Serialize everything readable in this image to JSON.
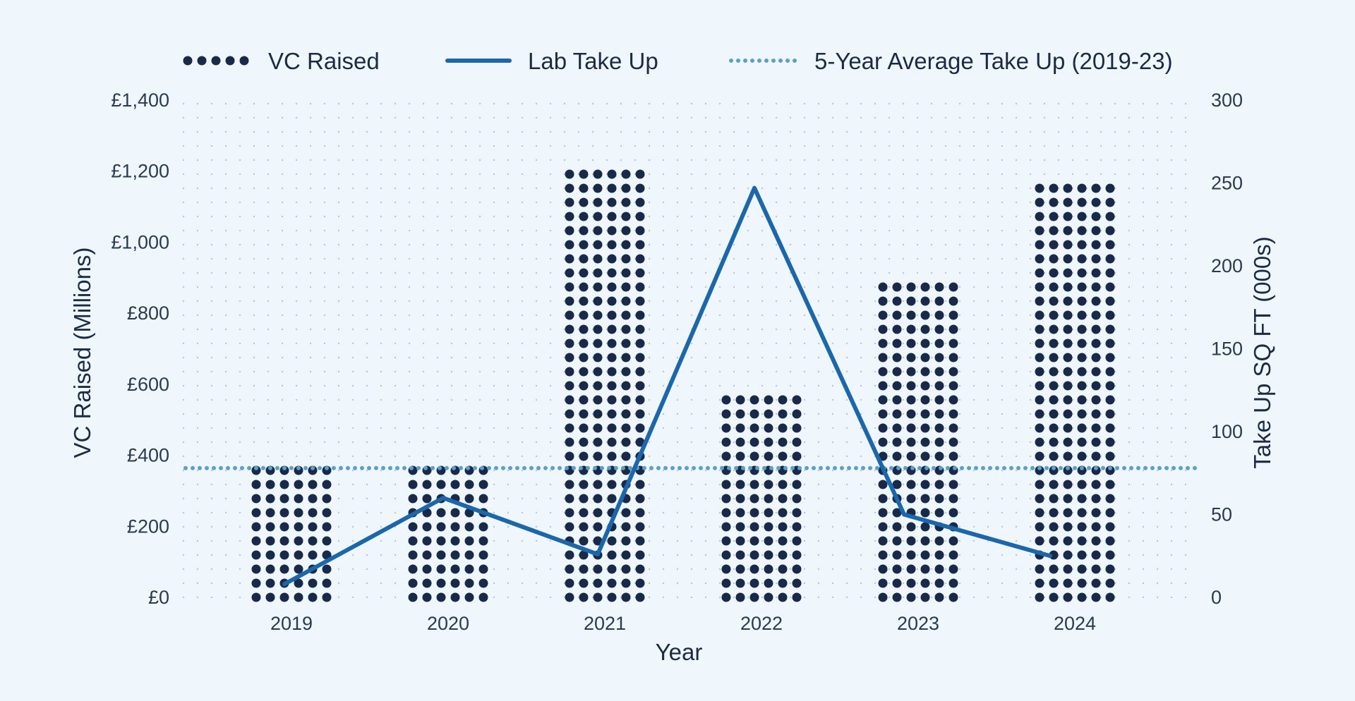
{
  "chart_data": {
    "type": "bar",
    "title": "",
    "xlabel": "Year",
    "ylabel": "VC Raised (Millions)",
    "y2label": "Take Up SQ FT (000s)",
    "categories": [
      "2019",
      "2020",
      "2021",
      "2022",
      "2023",
      "2024"
    ],
    "ylim": [
      0,
      1400
    ],
    "y2lim": [
      0,
      300
    ],
    "yticks": [
      "£0",
      "£200",
      "£400",
      "£600",
      "£800",
      "£1,000",
      "£1,200",
      "£1,400"
    ],
    "y2ticks": [
      "0",
      "50",
      "100",
      "150",
      "200",
      "250",
      "300"
    ],
    "grid": true,
    "legend_position": "top",
    "series": [
      {
        "name": "VC Raised",
        "type": "bar",
        "axis": "left",
        "color": "#18294a",
        "values": [
          360,
          360,
          1210,
          570,
          890,
          1170
        ]
      },
      {
        "name": "Lab Take Up",
        "type": "line",
        "axis": "right",
        "color": "#1c67ac",
        "values": [
          8,
          60,
          26,
          247,
          50,
          25
        ]
      },
      {
        "name": "5-Year Average Take Up (2019-23)",
        "type": "line",
        "axis": "right",
        "style": "dotted",
        "color": "#5c9fcc",
        "values": [
          78,
          78,
          78,
          78,
          78,
          78
        ]
      }
    ]
  }
}
